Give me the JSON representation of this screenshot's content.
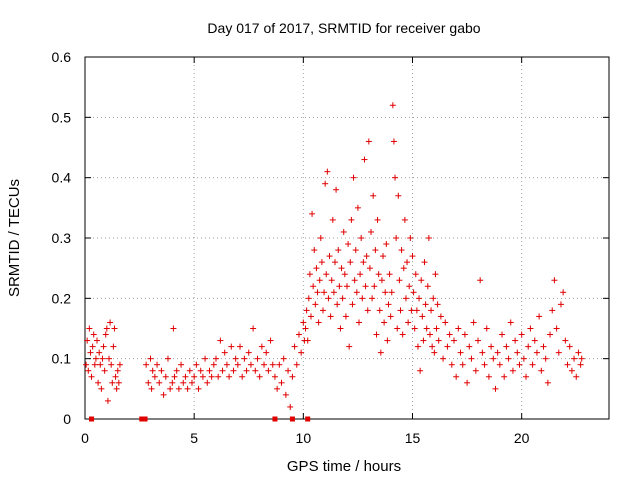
{
  "chart_data": {
    "type": "scatter",
    "title": "Day 017 of 2017, SRMTID for receiver gabo",
    "xlabel": "GPS time / hours",
    "ylabel": "SRMTID / TECUs",
    "xlim": [
      0,
      24
    ],
    "ylim": [
      0,
      0.6
    ],
    "xticks": [
      0,
      5,
      10,
      15,
      20
    ],
    "yticks": [
      0,
      0.1,
      0.2,
      0.3,
      0.4,
      0.5,
      0.6
    ],
    "xtick_labels": [
      "0",
      "5",
      "10",
      "15",
      "20"
    ],
    "ytick_labels": [
      "0",
      "0.1",
      "0.2",
      "0.3",
      "0.4",
      "0.5",
      "0.6"
    ],
    "grid": true,
    "marker": "+",
    "color": "#e00000",
    "series": [
      {
        "name": "SRMTID",
        "points": [
          [
            0.05,
            0.09
          ],
          [
            0.1,
            0.13
          ],
          [
            0.15,
            0.08
          ],
          [
            0.2,
            0.15
          ],
          [
            0.25,
            0.11
          ],
          [
            0.3,
            0.07
          ],
          [
            0.35,
            0.12
          ],
          [
            0.4,
            0.14
          ],
          [
            0.45,
            0.09
          ],
          [
            0.5,
            0.1
          ],
          [
            0.55,
            0.13
          ],
          [
            0.6,
            0.06
          ],
          [
            0.65,
            0.11
          ],
          [
            0.7,
            0.09
          ],
          [
            0.75,
            0.05
          ],
          [
            0.8,
            0.1
          ],
          [
            0.85,
            0.12
          ],
          [
            0.9,
            0.08
          ],
          [
            0.95,
            0.14
          ],
          [
            1.0,
            0.15
          ],
          [
            1.05,
            0.03
          ],
          [
            1.1,
            0.1
          ],
          [
            1.15,
            0.16
          ],
          [
            1.2,
            0.09
          ],
          [
            1.25,
            0.06
          ],
          [
            1.3,
            0.12
          ],
          [
            1.35,
            0.15
          ],
          [
            1.4,
            0.07
          ],
          [
            1.45,
            0.05
          ],
          [
            1.5,
            0.08
          ],
          [
            1.55,
            0.06
          ],
          [
            1.6,
            0.09
          ],
          [
            2.8,
            0.09
          ],
          [
            2.9,
            0.06
          ],
          [
            3.0,
            0.1
          ],
          [
            3.05,
            0.05
          ],
          [
            3.1,
            0.08
          ],
          [
            3.2,
            0.07
          ],
          [
            3.3,
            0.09
          ],
          [
            3.4,
            0.06
          ],
          [
            3.5,
            0.08
          ],
          [
            3.6,
            0.04
          ],
          [
            3.7,
            0.07
          ],
          [
            3.8,
            0.1
          ],
          [
            3.9,
            0.05
          ],
          [
            4.0,
            0.06
          ],
          [
            4.05,
            0.15
          ],
          [
            4.1,
            0.07
          ],
          [
            4.2,
            0.08
          ],
          [
            4.3,
            0.05
          ],
          [
            4.4,
            0.09
          ],
          [
            4.5,
            0.06
          ],
          [
            4.6,
            0.07
          ],
          [
            4.7,
            0.05
          ],
          [
            4.8,
            0.08
          ],
          [
            4.9,
            0.06
          ],
          [
            5.0,
            0.07
          ],
          [
            5.1,
            0.09
          ],
          [
            5.2,
            0.05
          ],
          [
            5.3,
            0.08
          ],
          [
            5.4,
            0.07
          ],
          [
            5.5,
            0.1
          ],
          [
            5.6,
            0.06
          ],
          [
            5.7,
            0.08
          ],
          [
            5.8,
            0.07
          ],
          [
            5.9,
            0.09
          ],
          [
            6.0,
            0.1
          ],
          [
            6.1,
            0.07
          ],
          [
            6.2,
            0.13
          ],
          [
            6.3,
            0.08
          ],
          [
            6.4,
            0.11
          ],
          [
            6.5,
            0.09
          ],
          [
            6.6,
            0.07
          ],
          [
            6.7,
            0.12
          ],
          [
            6.8,
            0.08
          ],
          [
            6.9,
            0.1
          ],
          [
            7.0,
            0.09
          ],
          [
            7.1,
            0.12
          ],
          [
            7.2,
            0.07
          ],
          [
            7.3,
            0.1
          ],
          [
            7.4,
            0.08
          ],
          [
            7.5,
            0.11
          ],
          [
            7.6,
            0.09
          ],
          [
            7.7,
            0.15
          ],
          [
            7.8,
            0.08
          ],
          [
            7.9,
            0.1
          ],
          [
            8.0,
            0.07
          ],
          [
            8.1,
            0.12
          ],
          [
            8.2,
            0.09
          ],
          [
            8.3,
            0.11
          ],
          [
            8.4,
            0.08
          ],
          [
            8.5,
            0.13
          ],
          [
            8.6,
            0.09
          ],
          [
            8.7,
            0.07
          ],
          [
            8.8,
            0.05
          ],
          [
            8.9,
            0.09
          ],
          [
            9.0,
            0.06
          ],
          [
            9.1,
            0.1
          ],
          [
            9.2,
            0.04
          ],
          [
            9.3,
            0.08
          ],
          [
            9.4,
            0.02
          ],
          [
            9.5,
            0.07
          ],
          [
            9.6,
            0.12
          ],
          [
            9.7,
            0.09
          ],
          [
            9.8,
            0.14
          ],
          [
            9.9,
            0.11
          ],
          [
            10.0,
            0.16
          ],
          [
            10.05,
            0.13
          ],
          [
            10.1,
            0.15
          ],
          [
            10.15,
            0.18
          ],
          [
            10.2,
            0.13
          ],
          [
            10.25,
            0.2
          ],
          [
            10.3,
            0.24
          ],
          [
            10.35,
            0.17
          ],
          [
            10.4,
            0.34
          ],
          [
            10.45,
            0.22
          ],
          [
            10.5,
            0.28
          ],
          [
            10.55,
            0.19
          ],
          [
            10.6,
            0.25
          ],
          [
            10.65,
            0.21
          ],
          [
            10.7,
            0.16
          ],
          [
            10.75,
            0.23
          ],
          [
            10.8,
            0.3
          ],
          [
            10.85,
            0.26
          ],
          [
            10.9,
            0.18
          ],
          [
            10.95,
            0.21
          ],
          [
            11.0,
            0.39
          ],
          [
            11.05,
            0.24
          ],
          [
            11.1,
            0.41
          ],
          [
            11.15,
            0.2
          ],
          [
            11.2,
            0.27
          ],
          [
            11.25,
            0.17
          ],
          [
            11.3,
            0.23
          ],
          [
            11.35,
            0.33
          ],
          [
            11.4,
            0.21
          ],
          [
            11.45,
            0.26
          ],
          [
            11.5,
            0.38
          ],
          [
            11.55,
            0.19
          ],
          [
            11.6,
            0.28
          ],
          [
            11.65,
            0.22
          ],
          [
            11.7,
            0.15
          ],
          [
            11.75,
            0.25
          ],
          [
            11.8,
            0.2
          ],
          [
            11.85,
            0.31
          ],
          [
            11.9,
            0.24
          ],
          [
            11.95,
            0.17
          ],
          [
            12.0,
            0.22
          ],
          [
            12.05,
            0.29
          ],
          [
            12.1,
            0.12
          ],
          [
            12.15,
            0.26
          ],
          [
            12.2,
            0.33
          ],
          [
            12.25,
            0.19
          ],
          [
            12.3,
            0.4
          ],
          [
            12.35,
            0.23
          ],
          [
            12.4,
            0.28
          ],
          [
            12.45,
            0.21
          ],
          [
            12.5,
            0.35
          ],
          [
            12.55,
            0.16
          ],
          [
            12.6,
            0.24
          ],
          [
            12.65,
            0.3
          ],
          [
            12.7,
            0.2
          ],
          [
            12.75,
            0.26
          ],
          [
            12.8,
            0.43
          ],
          [
            12.85,
            0.22
          ],
          [
            12.9,
            0.27
          ],
          [
            12.95,
            0.18
          ],
          [
            13.0,
            0.46
          ],
          [
            13.05,
            0.25
          ],
          [
            13.1,
            0.31
          ],
          [
            13.15,
            0.2
          ],
          [
            13.2,
            0.37
          ],
          [
            13.25,
            0.22
          ],
          [
            13.3,
            0.28
          ],
          [
            13.35,
            0.14
          ],
          [
            13.4,
            0.33
          ],
          [
            13.45,
            0.24
          ],
          [
            13.5,
            0.18
          ],
          [
            13.55,
            0.11
          ],
          [
            13.6,
            0.23
          ],
          [
            13.65,
            0.27
          ],
          [
            13.7,
            0.16
          ],
          [
            13.75,
            0.21
          ],
          [
            13.8,
            0.29
          ],
          [
            13.85,
            0.13
          ],
          [
            13.9,
            0.19
          ],
          [
            13.95,
            0.24
          ],
          [
            14.0,
            0.17
          ],
          [
            14.05,
            0.21
          ],
          [
            14.1,
            0.52
          ],
          [
            14.15,
            0.46
          ],
          [
            14.2,
            0.4
          ],
          [
            14.25,
            0.3
          ],
          [
            14.3,
            0.15
          ],
          [
            14.35,
            0.37
          ],
          [
            14.4,
            0.23
          ],
          [
            14.45,
            0.18
          ],
          [
            14.5,
            0.28
          ],
          [
            14.55,
            0.14
          ],
          [
            14.6,
            0.25
          ],
          [
            14.65,
            0.33
          ],
          [
            14.7,
            0.2
          ],
          [
            14.75,
            0.26
          ],
          [
            14.8,
            0.16
          ],
          [
            14.85,
            0.22
          ],
          [
            14.9,
            0.3
          ],
          [
            14.95,
            0.18
          ],
          [
            15.0,
            0.27
          ],
          [
            15.05,
            0.21
          ],
          [
            15.1,
            0.15
          ],
          [
            15.15,
            0.24
          ],
          [
            15.2,
            0.18
          ],
          [
            15.25,
            0.12
          ],
          [
            15.3,
            0.2
          ],
          [
            15.35,
            0.08
          ],
          [
            15.4,
            0.23
          ],
          [
            15.45,
            0.17
          ],
          [
            15.5,
            0.13
          ],
          [
            15.55,
            0.26
          ],
          [
            15.6,
            0.19
          ],
          [
            15.65,
            0.15
          ],
          [
            15.7,
            0.22
          ],
          [
            15.75,
            0.3
          ],
          [
            15.8,
            0.14
          ],
          [
            15.85,
            0.18
          ],
          [
            15.9,
            0.12
          ],
          [
            15.95,
            0.2
          ],
          [
            16.0,
            0.11
          ],
          [
            16.05,
            0.24
          ],
          [
            16.1,
            0.15
          ],
          [
            16.15,
            0.19
          ],
          [
            16.2,
            0.13
          ],
          [
            16.3,
            0.17
          ],
          [
            16.4,
            0.1
          ],
          [
            16.5,
            0.16
          ],
          [
            16.6,
            0.12
          ],
          [
            16.7,
            0.14
          ],
          [
            16.8,
            0.09
          ],
          [
            16.9,
            0.13
          ],
          [
            17.0,
            0.07
          ],
          [
            17.1,
            0.15
          ],
          [
            17.2,
            0.11
          ],
          [
            17.3,
            0.09
          ],
          [
            17.4,
            0.14
          ],
          [
            17.5,
            0.06
          ],
          [
            17.6,
            0.12
          ],
          [
            17.7,
            0.1
          ],
          [
            17.8,
            0.16
          ],
          [
            17.9,
            0.08
          ],
          [
            18.0,
            0.13
          ],
          [
            18.1,
            0.23
          ],
          [
            18.2,
            0.11
          ],
          [
            18.3,
            0.09
          ],
          [
            18.4,
            0.15
          ],
          [
            18.5,
            0.07
          ],
          [
            18.6,
            0.12
          ],
          [
            18.7,
            0.1
          ],
          [
            18.8,
            0.05
          ],
          [
            18.9,
            0.11
          ],
          [
            19.0,
            0.09
          ],
          [
            19.1,
            0.14
          ],
          [
            19.2,
            0.07
          ],
          [
            19.3,
            0.12
          ],
          [
            19.4,
            0.1
          ],
          [
            19.5,
            0.16
          ],
          [
            19.6,
            0.08
          ],
          [
            19.7,
            0.13
          ],
          [
            19.8,
            0.11
          ],
          [
            19.9,
            0.09
          ],
          [
            20.0,
            0.14
          ],
          [
            20.1,
            0.1
          ],
          [
            20.2,
            0.07
          ],
          [
            20.3,
            0.12
          ],
          [
            20.4,
            0.15
          ],
          [
            20.5,
            0.09
          ],
          [
            20.6,
            0.13
          ],
          [
            20.7,
            0.11
          ],
          [
            20.8,
            0.17
          ],
          [
            20.9,
            0.08
          ],
          [
            21.0,
            0.12
          ],
          [
            21.1,
            0.1
          ],
          [
            21.2,
            0.06
          ],
          [
            21.3,
            0.14
          ],
          [
            21.4,
            0.18
          ],
          [
            21.5,
            0.23
          ],
          [
            21.6,
            0.15
          ],
          [
            21.7,
            0.11
          ],
          [
            21.8,
            0.19
          ],
          [
            21.9,
            0.21
          ],
          [
            22.0,
            0.13
          ],
          [
            22.1,
            0.09
          ],
          [
            22.2,
            0.12
          ],
          [
            22.3,
            0.08
          ],
          [
            22.4,
            0.1
          ],
          [
            22.5,
            0.07
          ],
          [
            22.6,
            0.11
          ],
          [
            22.7,
            0.09
          ],
          [
            22.75,
            0.1
          ]
        ]
      }
    ],
    "gap_markers_x": [
      0.3,
      2.6,
      2.75,
      8.7,
      9.5,
      10.2
    ]
  }
}
